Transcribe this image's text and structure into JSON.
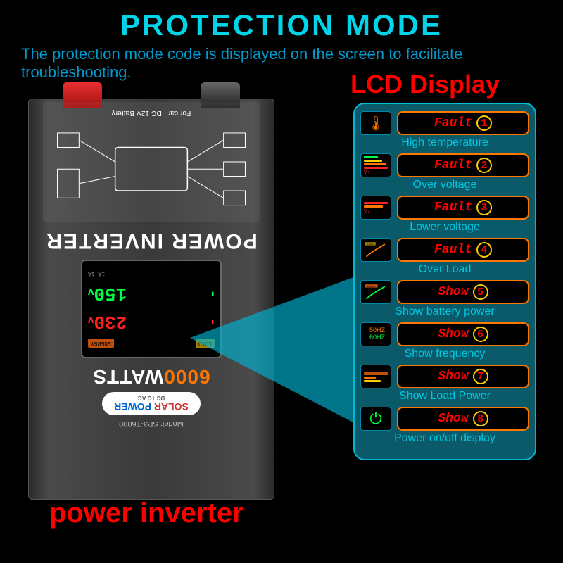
{
  "header": {
    "title": "PROTECTION MODE",
    "subtitle": "The protection mode code is displayed on the screen to facilitate troubleshooting.",
    "lcd_label": "LCD Display"
  },
  "device": {
    "power_inverter_text": "POWER INVERTER",
    "watts_number": "6000",
    "watts_text": "WATTS",
    "brand_solar": "SOLAR",
    "brand_power": "POWER",
    "brand_sub": "DC TO AC",
    "model": "Model: SP3-T6000",
    "lcd_val1": "230",
    "lcd_val1_suffix": "V",
    "lcd_val2": "150",
    "lcd_val2_suffix": "V",
    "lcd_load": "LOAD",
    "lcd_energy": "ENERGY"
  },
  "bottom_label": "power inverter",
  "faults": [
    {
      "icon_type": "thermo",
      "word": "Fault",
      "num": "1",
      "caption": "High temperature"
    },
    {
      "icon_type": "bars_ov",
      "word": "Fault",
      "num": "2",
      "caption": "Over voltage"
    },
    {
      "icon_type": "bars_lv",
      "word": "Fault",
      "num": "3",
      "caption": "Lower voltage"
    },
    {
      "icon_type": "curve",
      "word": "Fault",
      "num": "4",
      "caption": "Over Load"
    },
    {
      "icon_type": "curve2",
      "word": "Show",
      "num": "5",
      "caption": "Show battery power"
    },
    {
      "icon_type": "hz",
      "word": "Show",
      "num": "6",
      "caption": "Show frequency"
    },
    {
      "icon_type": "bars_lp",
      "word": "Show",
      "num": "7",
      "caption": "Show Load Power"
    },
    {
      "icon_type": "power",
      "word": "Show",
      "num": "8",
      "caption": "Power on/off display"
    }
  ],
  "colors": {
    "accent_cyan": "#00d4e8",
    "accent_red": "#ff0000",
    "badge_border": "#ff7700",
    "num_border": "#ffcc00",
    "panel_bg": "#0a5a6a",
    "panel_border": "#00b8d0"
  }
}
